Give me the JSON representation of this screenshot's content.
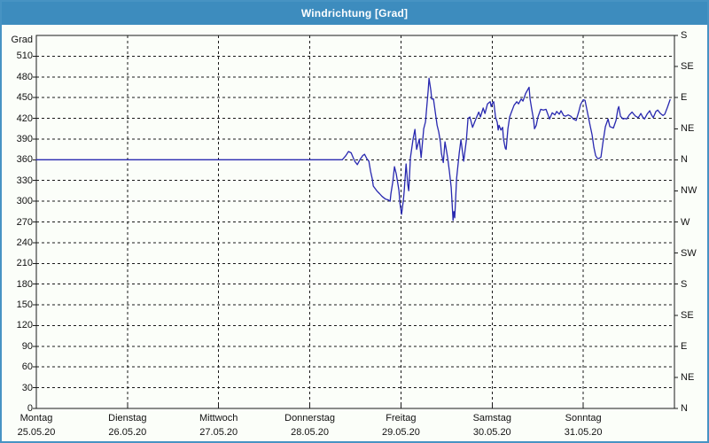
{
  "window": {
    "title": "Windrichtung [Grad]",
    "colors": {
      "titlebar": "#3d8cbe",
      "window_border": "#4793c3",
      "background": "#fbfef9",
      "series_line": "#2828b0",
      "grid": "#1a1a1a"
    }
  },
  "chart_data": {
    "type": "line",
    "title": "Windrichtung [Grad]",
    "grid": "dashed, on",
    "legend": "none",
    "y_axis": {
      "label": "Grad",
      "min": 0,
      "max": 540,
      "tick_step": 30,
      "ticks": [
        0,
        30,
        60,
        90,
        120,
        150,
        180,
        210,
        240,
        270,
        300,
        330,
        360,
        390,
        420,
        450,
        480,
        510
      ]
    },
    "right_axis": {
      "unit": "compass directions",
      "tick_step_deg": 45,
      "labels_bottom_to_top": [
        "N",
        "NE",
        "E",
        "SE",
        "S",
        "SW",
        "W",
        "NW",
        "N",
        "NE",
        "E",
        "SE",
        "S"
      ]
    },
    "x_axis": {
      "range_days": [
        0,
        7
      ],
      "days": [
        {
          "name": "Montag",
          "date": "25.05.20"
        },
        {
          "name": "Dienstag",
          "date": "26.05.20"
        },
        {
          "name": "Mittwoch",
          "date": "27.05.20"
        },
        {
          "name": "Donnerstag",
          "date": "28.05.20"
        },
        {
          "name": "Freitag",
          "date": "29.05.20"
        },
        {
          "name": "Samstag",
          "date": "30.05.20"
        },
        {
          "name": "Sonntag",
          "date": "31.05.20"
        }
      ]
    },
    "series": [
      {
        "name": "Windrichtung",
        "color": "#2828b0",
        "x_unit": "days since Montag 25.05.20 00:00",
        "y_unit": "Grad",
        "points": [
          [
            0,
            360
          ],
          [
            3.356,
            360
          ],
          [
            3.395,
            366
          ],
          [
            3.424,
            372
          ],
          [
            3.453,
            370
          ],
          [
            3.492,
            358
          ],
          [
            3.521,
            353
          ],
          [
            3.55,
            360
          ],
          [
            3.58,
            366
          ],
          [
            3.6,
            368
          ],
          [
            3.628,
            361
          ],
          [
            3.648,
            358
          ],
          [
            3.667,
            343
          ],
          [
            3.686,
            332
          ],
          [
            3.696,
            322
          ],
          [
            3.735,
            315
          ],
          [
            3.764,
            311
          ],
          [
            3.793,
            307
          ],
          [
            3.832,
            303
          ],
          [
            3.861,
            302
          ],
          [
            3.881,
            300
          ],
          [
            3.89,
            311
          ],
          [
            3.91,
            328
          ],
          [
            3.929,
            350
          ],
          [
            3.949,
            339
          ],
          [
            3.978,
            315
          ],
          [
            3.988,
            298
          ],
          [
            4.007,
            281
          ],
          [
            4.027,
            302
          ],
          [
            4.036,
            315
          ],
          [
            4.056,
            354
          ],
          [
            4.075,
            324
          ],
          [
            4.085,
            315
          ],
          [
            4.104,
            363
          ],
          [
            4.133,
            390
          ],
          [
            4.153,
            404
          ],
          [
            4.172,
            375
          ],
          [
            4.201,
            390
          ],
          [
            4.221,
            363
          ],
          [
            4.25,
            405
          ],
          [
            4.269,
            415
          ],
          [
            4.298,
            460
          ],
          [
            4.308,
            478
          ],
          [
            4.328,
            460
          ],
          [
            4.337,
            448
          ],
          [
            4.357,
            448
          ],
          [
            4.396,
            410
          ],
          [
            4.415,
            400
          ],
          [
            4.434,
            384
          ],
          [
            4.444,
            369
          ],
          [
            4.464,
            356
          ],
          [
            4.483,
            386
          ],
          [
            4.512,
            363
          ],
          [
            4.532,
            343
          ],
          [
            4.551,
            320
          ],
          [
            4.561,
            298
          ],
          [
            4.571,
            272
          ],
          [
            4.58,
            285
          ],
          [
            4.59,
            276
          ],
          [
            4.61,
            333
          ],
          [
            4.639,
            370
          ],
          [
            4.658,
            389
          ],
          [
            4.688,
            358
          ],
          [
            4.717,
            388
          ],
          [
            4.736,
            420
          ],
          [
            4.756,
            422
          ],
          [
            4.785,
            407
          ],
          [
            4.824,
            420
          ],
          [
            4.853,
            429
          ],
          [
            4.872,
            422
          ],
          [
            4.902,
            435
          ],
          [
            4.921,
            427
          ],
          [
            4.95,
            441
          ],
          [
            4.979,
            444
          ],
          [
            4.989,
            437
          ],
          [
            5.008,
            443
          ],
          [
            5.018,
            444
          ],
          [
            5.037,
            422
          ],
          [
            5.057,
            414
          ],
          [
            5.066,
            403
          ],
          [
            5.076,
            410
          ],
          [
            5.096,
            403
          ],
          [
            5.115,
            407
          ],
          [
            5.125,
            390
          ],
          [
            5.144,
            377
          ],
          [
            5.154,
            375
          ],
          [
            5.173,
            405
          ],
          [
            5.193,
            422
          ],
          [
            5.212,
            429
          ],
          [
            5.241,
            439
          ],
          [
            5.27,
            444
          ],
          [
            5.29,
            441
          ],
          [
            5.319,
            448
          ],
          [
            5.338,
            445
          ],
          [
            5.368,
            456
          ],
          [
            5.406,
            465
          ],
          [
            5.416,
            448
          ],
          [
            5.435,
            433
          ],
          [
            5.455,
            418
          ],
          [
            5.465,
            405
          ],
          [
            5.484,
            410
          ],
          [
            5.503,
            422
          ],
          [
            5.533,
            433
          ],
          [
            5.562,
            432
          ],
          [
            5.591,
            433
          ],
          [
            5.63,
            419
          ],
          [
            5.659,
            428
          ],
          [
            5.688,
            425
          ],
          [
            5.708,
            430
          ],
          [
            5.737,
            426
          ],
          [
            5.756,
            431
          ],
          [
            5.785,
            424
          ],
          [
            5.805,
            423
          ],
          [
            5.834,
            425
          ],
          [
            5.863,
            423
          ],
          [
            5.892,
            419
          ],
          [
            5.922,
            417
          ],
          [
            5.951,
            430
          ],
          [
            5.97,
            440
          ],
          [
            6.0,
            447
          ],
          [
            6.019,
            446
          ],
          [
            6.048,
            427
          ],
          [
            6.077,
            408
          ],
          [
            6.097,
            396
          ],
          [
            6.116,
            378
          ],
          [
            6.136,
            366
          ],
          [
            6.155,
            362
          ],
          [
            6.175,
            362
          ],
          [
            6.194,
            364
          ],
          [
            6.213,
            383
          ],
          [
            6.243,
            408
          ],
          [
            6.272,
            419
          ],
          [
            6.291,
            408
          ],
          [
            6.311,
            407
          ],
          [
            6.33,
            406
          ],
          [
            6.359,
            417
          ],
          [
            6.379,
            433
          ],
          [
            6.389,
            437
          ],
          [
            6.408,
            423
          ],
          [
            6.437,
            419
          ],
          [
            6.457,
            420
          ],
          [
            6.476,
            419
          ],
          [
            6.505,
            425
          ],
          [
            6.535,
            429
          ],
          [
            6.554,
            426
          ],
          [
            6.574,
            423
          ],
          [
            6.603,
            421
          ],
          [
            6.632,
            427
          ],
          [
            6.651,
            422
          ],
          [
            6.671,
            419
          ],
          [
            6.7,
            426
          ],
          [
            6.729,
            431
          ],
          [
            6.748,
            425
          ],
          [
            6.768,
            421
          ],
          [
            6.797,
            430
          ],
          [
            6.816,
            432
          ],
          [
            6.846,
            427
          ],
          [
            6.875,
            424
          ],
          [
            6.894,
            426
          ],
          [
            6.923,
            436
          ],
          [
            6.952,
            447
          ]
        ]
      }
    ]
  }
}
